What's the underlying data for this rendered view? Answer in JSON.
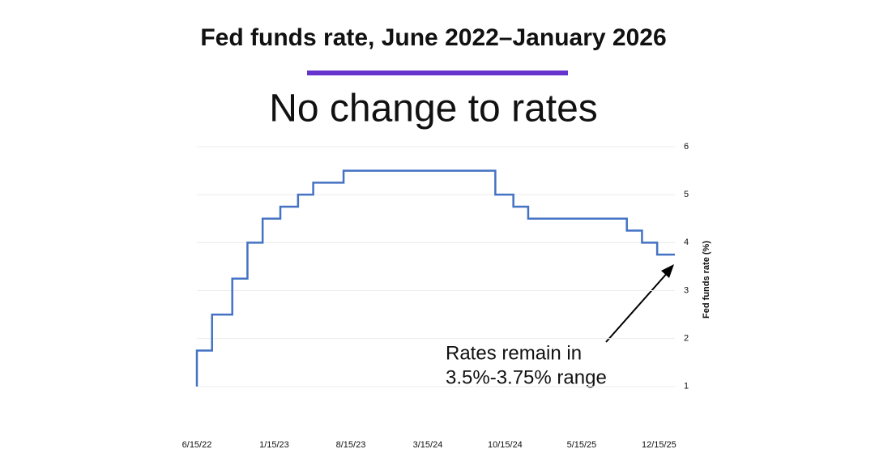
{
  "chart_data": {
    "type": "line",
    "step": "post",
    "title": "Fed funds rate, June 2022–January 2026",
    "subtitle": "No change to rates",
    "y_axis_label": "Fed funds rate (%)",
    "annotation": [
      "Rates remain in",
      "3.5%-3.75% range"
    ],
    "x": [
      "2022-06-15",
      "2022-06-15",
      "2022-07-27",
      "2022-09-21",
      "2022-11-02",
      "2022-12-14",
      "2023-02-01",
      "2023-03-22",
      "2023-05-03",
      "2023-07-26",
      "2024-09-18",
      "2024-11-07",
      "2024-12-18",
      "2025-09-17",
      "2025-10-29",
      "2025-12-10",
      "2026-01-28"
    ],
    "series": [
      {
        "name": "Fed funds rate",
        "color": "#4472c4",
        "values": [
          1,
          1.75,
          2.5,
          3.25,
          4,
          4.5,
          4.75,
          5,
          5.25,
          5.5,
          5,
          4.75,
          4.5,
          4.25,
          4,
          3.75,
          3.75
        ]
      }
    ],
    "xlim": [
      "2022-06-15",
      "2026-01-28"
    ],
    "xticks": [
      {
        "value": "2022-06-15",
        "label": "6/15/22"
      },
      {
        "value": "2023-01-15",
        "label": "1/15/23"
      },
      {
        "value": "2023-08-15",
        "label": "8/15/23"
      },
      {
        "value": "2024-03-15",
        "label": "3/15/24"
      },
      {
        "value": "2024-10-15",
        "label": "10/15/24"
      },
      {
        "value": "2025-05-15",
        "label": "5/15/25"
      },
      {
        "value": "2025-12-15",
        "label": "12/15/25"
      }
    ],
    "ylim": [
      0,
      6
    ],
    "yticks": [
      1,
      2,
      3,
      4,
      5,
      6
    ],
    "grid": true,
    "accent_color": "#6633cc"
  }
}
